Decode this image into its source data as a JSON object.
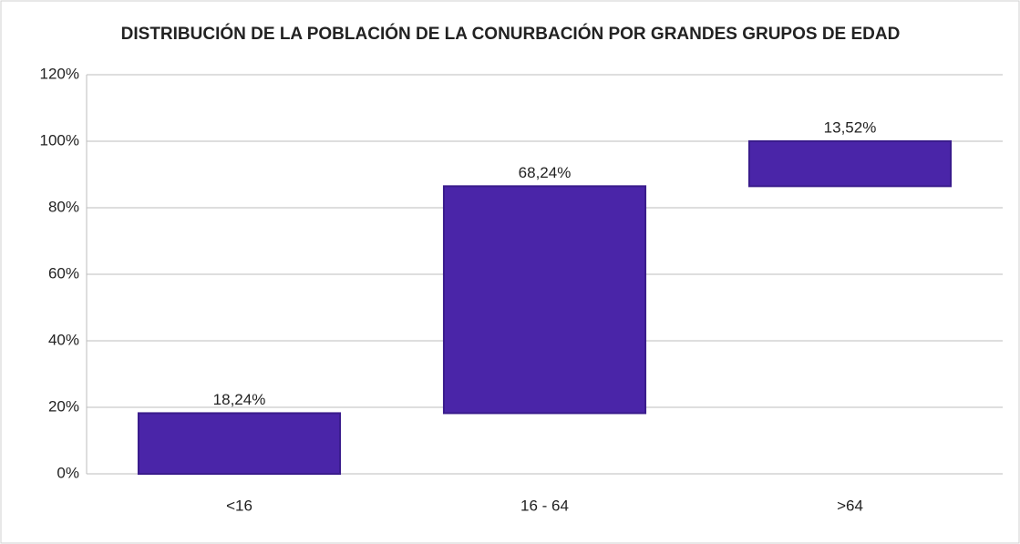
{
  "chart_data": {
    "type": "waterfall",
    "title": "DISTRIBUCIÓN DE LA POBLACIÓN DE LA CONURBACIÓN POR GRANDES GRUPOS DE EDAD",
    "categories": [
      "<16",
      "16 - 64",
      ">64"
    ],
    "values": [
      18.24,
      68.24,
      13.52
    ],
    "value_labels": [
      "18,24%",
      "68,24%",
      "13,52%"
    ],
    "color": "#4a25a8",
    "ylim": [
      0,
      120
    ],
    "yticks": [
      {
        "value": 0,
        "label": "0%"
      },
      {
        "value": 20,
        "label": "20%"
      },
      {
        "value": 40,
        "label": "40%"
      },
      {
        "value": 60,
        "label": "60%"
      },
      {
        "value": 80,
        "label": "80%"
      },
      {
        "value": 100,
        "label": "100%"
      },
      {
        "value": 120,
        "label": "120%"
      }
    ],
    "grid": true
  }
}
